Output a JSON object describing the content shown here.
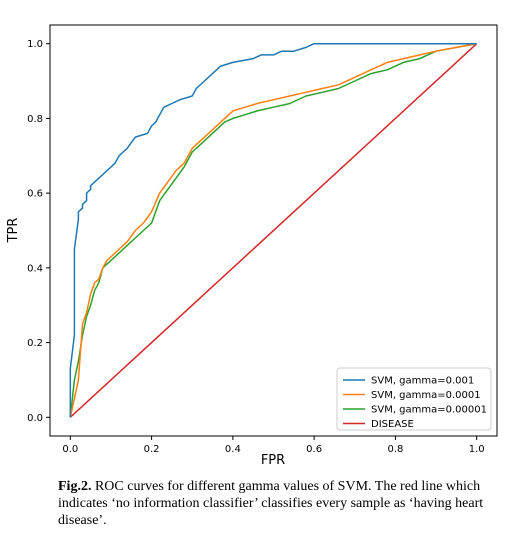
{
  "chart_data": {
    "type": "line",
    "xlabel": "FPR",
    "ylabel": "TPR",
    "xlim": [
      -0.05,
      1.05
    ],
    "ylim": [
      -0.05,
      1.05
    ],
    "xticks": [
      "0.0",
      "0.2",
      "0.4",
      "0.6",
      "0.8",
      "1.0"
    ],
    "yticks": [
      "0.0",
      "0.2",
      "0.4",
      "0.6",
      "0.8",
      "1.0"
    ],
    "grid": false,
    "legend_position": "lower-right",
    "series": [
      {
        "name": "SVM, gamma=0.001",
        "color": "#1f77b4",
        "x": [
          0,
          0,
          0.01,
          0.01,
          0.02,
          0.02,
          0.03,
          0.03,
          0.04,
          0.04,
          0.05,
          0.05,
          0.06,
          0.07,
          0.08,
          0.09,
          0.1,
          0.11,
          0.12,
          0.13,
          0.14,
          0.16,
          0.19,
          0.2,
          0.21,
          0.22,
          0.23,
          0.25,
          0.27,
          0.3,
          0.31,
          0.33,
          0.35,
          0.37,
          0.4,
          0.45,
          0.47,
          0.5,
          0.52,
          0.55,
          0.58,
          0.6,
          0.7,
          0.9,
          1.0
        ],
        "y": [
          0,
          0.13,
          0.22,
          0.45,
          0.53,
          0.55,
          0.56,
          0.57,
          0.58,
          0.6,
          0.61,
          0.62,
          0.63,
          0.64,
          0.65,
          0.66,
          0.67,
          0.68,
          0.7,
          0.71,
          0.72,
          0.75,
          0.76,
          0.78,
          0.79,
          0.81,
          0.83,
          0.84,
          0.85,
          0.86,
          0.88,
          0.9,
          0.92,
          0.94,
          0.95,
          0.96,
          0.97,
          0.97,
          0.98,
          0.98,
          0.99,
          1.0,
          1.0,
          1.0,
          1.0
        ]
      },
      {
        "name": "SVM, gamma=0.0001",
        "color": "#ff7f0e",
        "x": [
          0,
          0.01,
          0.02,
          0.03,
          0.04,
          0.05,
          0.06,
          0.07,
          0.08,
          0.09,
          0.1,
          0.12,
          0.14,
          0.16,
          0.18,
          0.2,
          0.22,
          0.24,
          0.26,
          0.28,
          0.3,
          0.32,
          0.34,
          0.36,
          0.38,
          0.4,
          0.43,
          0.46,
          0.5,
          0.54,
          0.58,
          0.62,
          0.66,
          0.7,
          0.74,
          0.78,
          0.82,
          0.86,
          0.9,
          0.95,
          1.0
        ],
        "y": [
          0,
          0.05,
          0.1,
          0.25,
          0.28,
          0.33,
          0.36,
          0.37,
          0.4,
          0.42,
          0.43,
          0.45,
          0.47,
          0.5,
          0.52,
          0.55,
          0.6,
          0.63,
          0.66,
          0.68,
          0.72,
          0.74,
          0.76,
          0.78,
          0.8,
          0.82,
          0.83,
          0.84,
          0.85,
          0.86,
          0.87,
          0.88,
          0.89,
          0.91,
          0.93,
          0.95,
          0.96,
          0.97,
          0.98,
          0.99,
          1.0
        ]
      },
      {
        "name": "SVM, gamma=0.00001",
        "color": "#2ca02c",
        "x": [
          0,
          0.01,
          0.02,
          0.03,
          0.04,
          0.05,
          0.06,
          0.07,
          0.08,
          0.09,
          0.1,
          0.12,
          0.14,
          0.16,
          0.18,
          0.2,
          0.22,
          0.24,
          0.26,
          0.28,
          0.3,
          0.32,
          0.34,
          0.36,
          0.38,
          0.4,
          0.43,
          0.46,
          0.5,
          0.54,
          0.58,
          0.62,
          0.66,
          0.7,
          0.74,
          0.78,
          0.82,
          0.86,
          0.9,
          0.95,
          1.0
        ],
        "y": [
          0,
          0.1,
          0.15,
          0.22,
          0.27,
          0.3,
          0.34,
          0.36,
          0.4,
          0.41,
          0.42,
          0.44,
          0.46,
          0.48,
          0.5,
          0.52,
          0.58,
          0.61,
          0.64,
          0.67,
          0.71,
          0.73,
          0.75,
          0.77,
          0.79,
          0.8,
          0.81,
          0.82,
          0.83,
          0.84,
          0.86,
          0.87,
          0.88,
          0.9,
          0.92,
          0.93,
          0.95,
          0.96,
          0.98,
          0.99,
          1.0
        ]
      },
      {
        "name": "DISEASE",
        "color": "#d62728",
        "x": [
          0,
          1
        ],
        "y": [
          0,
          1
        ]
      }
    ]
  },
  "caption": {
    "label": "Fig.2.",
    "text": " ROC curves for different gamma values of SVM. The red line which indicates ‘no information classifier’ classifies every sample as ‘having heart disease’."
  }
}
